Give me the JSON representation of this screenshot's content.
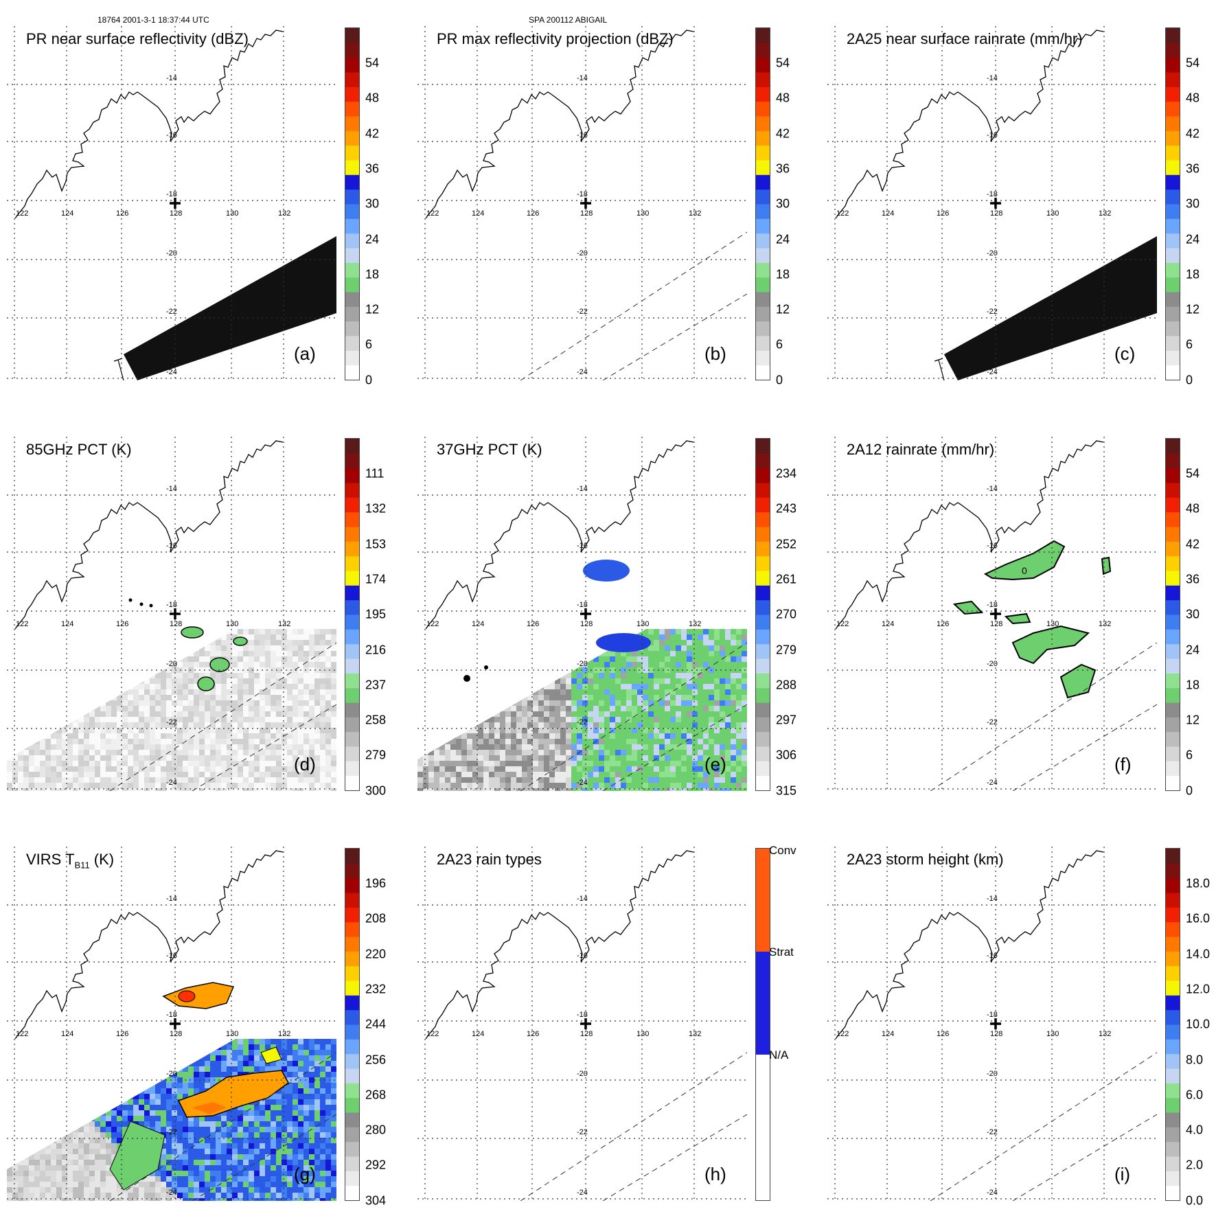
{
  "header": {
    "left": "18764 2001-3-1 18:37:44 UTC",
    "center": "SPA 200112 ABIGAIL"
  },
  "map": {
    "lon_labels": [
      "122",
      "124",
      "126",
      "128",
      "130",
      "132"
    ],
    "lat_labels": [
      "-14",
      "-16",
      "-18",
      "-20",
      "-22",
      "-24"
    ]
  },
  "colors": {
    "scale": [
      "#ffffff",
      "#ebebeb",
      "#d6d6d6",
      "#bdbdbd",
      "#a3a3a3",
      "#8c8c8c",
      "#6ecf6e",
      "#8fe08f",
      "#c6d6f2",
      "#9fc4f5",
      "#6aa6ff",
      "#3e7ef0",
      "#2a5ae6",
      "#1616d8",
      "#f6f600",
      "#ffd000",
      "#ffa000",
      "#ff7800",
      "#ff5000",
      "#f02000",
      "#cc1000",
      "#a00000",
      "#7a1010",
      "#5a1a1a"
    ],
    "black_swath": "#111111",
    "rain_type": [
      "#ffffff",
      "#1f1fe0",
      "#ff5a10"
    ]
  },
  "panels": [
    {
      "title": "PR near surface reflectivity (dBZ)",
      "label": "(a)",
      "ticks": [
        "54",
        "48",
        "42",
        "36",
        "30",
        "24",
        "18",
        "12",
        "6",
        "0"
      ],
      "overlay": "black"
    },
    {
      "title": "PR max reflectivity projection (dBZ)",
      "label": "(b)",
      "ticks": [
        "54",
        "48",
        "42",
        "36",
        "30",
        "24",
        "18",
        "12",
        "6",
        "0"
      ],
      "overlay": "none"
    },
    {
      "title": "2A25 near surface rainrate (mm/hr)",
      "label": "(c)",
      "ticks": [
        "54",
        "48",
        "42",
        "36",
        "30",
        "24",
        "18",
        "12",
        "6",
        "0"
      ],
      "overlay": "black"
    },
    {
      "title": "85GHz PCT (K)",
      "label": "(d)",
      "ticks": [
        "111",
        "132",
        "153",
        "174",
        "195",
        "216",
        "237",
        "258",
        "279",
        "300"
      ],
      "overlay": "gray"
    },
    {
      "title": "37GHz PCT (K)",
      "label": "(e)",
      "ticks": [
        "234",
        "243",
        "252",
        "261",
        "270",
        "279",
        "288",
        "297",
        "306",
        "315"
      ],
      "overlay": "pct37"
    },
    {
      "title": "2A12 rainrate (mm/hr)",
      "label": "(f)",
      "ticks": [
        "54",
        "48",
        "42",
        "36",
        "30",
        "24",
        "18",
        "12",
        "6",
        "0"
      ],
      "overlay": "rain12",
      "contour_label": "0"
    },
    {
      "title_main": "VIRS T",
      "title_sub": "B11",
      "title_tail": " (K)",
      "label": "(g)",
      "ticks": [
        "196",
        "208",
        "220",
        "232",
        "244",
        "256",
        "268",
        "280",
        "292",
        "304"
      ],
      "overlay": "virs"
    },
    {
      "title": "2A23 rain types",
      "label": "(h)",
      "rt_labels": [
        "Conv",
        "Strat",
        "N/A"
      ],
      "overlay": "none"
    },
    {
      "title": "2A23 storm height (km)",
      "label": "(i)",
      "ticks": [
        "18.0",
        "16.0",
        "14.0",
        "12.0",
        "10.0",
        "8.0",
        "6.0",
        "4.0",
        "2.0",
        "0.0"
      ],
      "overlay": "none"
    }
  ]
}
